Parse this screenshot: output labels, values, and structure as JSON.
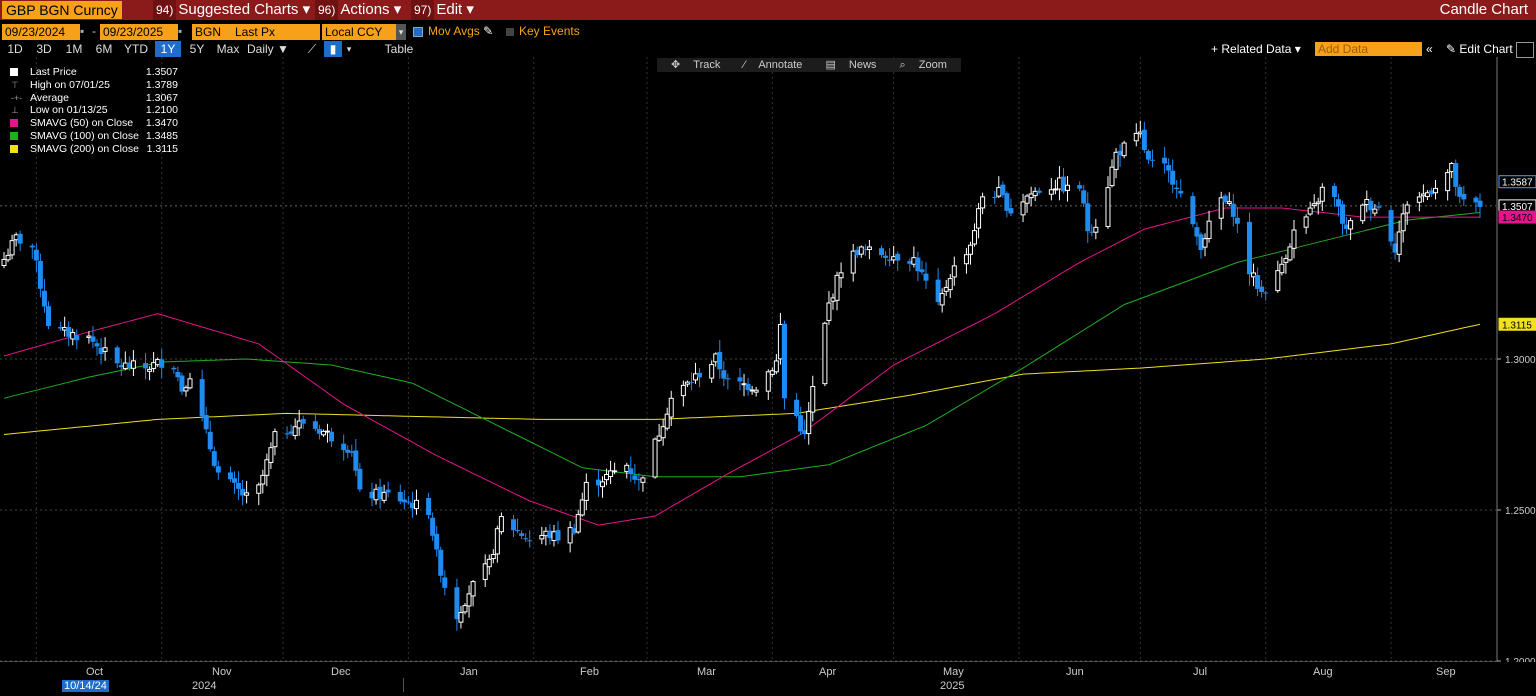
{
  "header": {
    "security": "GBP BGN Curncy",
    "menus": [
      {
        "key": "94)",
        "label": "Suggested Charts"
      },
      {
        "key": "96)",
        "label": "Actions"
      },
      {
        "key": "97)",
        "label": "Edit"
      }
    ],
    "chart_mode": "Candle Chart"
  },
  "controls": {
    "start_date": "09/23/2024",
    "dash": "-",
    "end_date": "09/23/2025",
    "source": "BGN",
    "field": "Last Px",
    "currency": "Local CCY",
    "mov_avgs_label": "Mov Avgs",
    "key_events_label": "Key Events"
  },
  "tabs": [
    "1D",
    "3D",
    "1M",
    "6M",
    "YTD",
    "1Y",
    "5Y",
    "Max"
  ],
  "active_tab": "1Y",
  "period_select": "Daily",
  "table_label": "Table",
  "related_data_label": "Related Data",
  "add_data_placeholder": "Add Data",
  "edit_chart_label": "Edit Chart",
  "toolbar": [
    "Track",
    "Annotate",
    "News",
    "Zoom"
  ],
  "legend": [
    {
      "label": "Last Price",
      "value": "1.3507",
      "color": "#ffffff",
      "kind": "box"
    },
    {
      "label": "High on 07/01/25",
      "value": "1.3789",
      "kind": "high"
    },
    {
      "label": "Average",
      "value": "1.3067",
      "kind": "avg"
    },
    {
      "label": "Low on 01/13/25",
      "value": "1.2100",
      "kind": "low"
    },
    {
      "label": "SMAVG (50)  on Close",
      "value": "1.3470",
      "color": "#e6148c",
      "kind": "box"
    },
    {
      "label": "SMAVG (100)  on Close",
      "value": "1.3485",
      "color": "#1fb01f",
      "kind": "box"
    },
    {
      "label": "SMAVG (200)  on Close",
      "value": "1.3115",
      "color": "#f0e020",
      "kind": "box"
    }
  ],
  "time_axis": {
    "months": [
      "Oct",
      "Nov",
      "Dec",
      "Jan",
      "Feb",
      "Mar",
      "Apr",
      "May",
      "Jun",
      "Jul",
      "Aug",
      "Sep"
    ],
    "years": [
      "2024",
      "2025"
    ],
    "cursor_date": "10/14/24"
  },
  "price_axis": {
    "ticks": [
      "1.3000",
      "1.2500",
      "1.2000"
    ],
    "labels": [
      {
        "text": "1.3587",
        "bg": "#000000",
        "fg": "#ffffff",
        "border": "#4aa3ff"
      },
      {
        "text": "1.3507",
        "bg": "#000000",
        "fg": "#ffffff",
        "border": "#ffffff"
      },
      {
        "text": "1.3470",
        "bg": "#e6148c",
        "fg": "#000000",
        "border": "#e6148c"
      },
      {
        "text": "1.3115",
        "bg": "#f0e020",
        "fg": "#000000",
        "border": "#f0e020"
      }
    ]
  },
  "colors": {
    "title_bar": "#8b1a1a",
    "accent": "#f7a11a",
    "up_candle": "#ffffff",
    "down_candle": "#1f8af0",
    "sma50": "#e6148c",
    "sma100": "#1fb01f",
    "sma200": "#f0e020"
  },
  "chart_data": {
    "type": "candlestick",
    "title": "",
    "ylim": [
      1.195,
      1.4
    ],
    "yticks": [
      1.3,
      1.25,
      1.2
    ],
    "x_range": [
      "09/23/2024",
      "09/23/2025"
    ],
    "anchors": [
      [
        "2024-09-23",
        1.333
      ],
      [
        "2024-09-26",
        1.34
      ],
      [
        "2024-09-30",
        1.337
      ],
      [
        "2024-10-04",
        1.312
      ],
      [
        "2024-10-07",
        1.309
      ],
      [
        "2024-10-14",
        1.307
      ],
      [
        "2024-10-21",
        1.298
      ],
      [
        "2024-10-28",
        1.297
      ],
      [
        "2024-11-01",
        1.299
      ],
      [
        "2024-11-04",
        1.298
      ],
      [
        "2024-11-06",
        1.29
      ],
      [
        "2024-11-08",
        1.295
      ],
      [
        "2024-11-12",
        1.275
      ],
      [
        "2024-11-15",
        1.262
      ],
      [
        "2024-11-22",
        1.254
      ],
      [
        "2024-11-25",
        1.257
      ],
      [
        "2024-11-29",
        1.274
      ],
      [
        "2024-12-04",
        1.278
      ],
      [
        "2024-12-06",
        1.279
      ],
      [
        "2024-12-11",
        1.276
      ],
      [
        "2024-12-18",
        1.27
      ],
      [
        "2024-12-20",
        1.255
      ],
      [
        "2024-12-27",
        1.255
      ],
      [
        "2025-01-06",
        1.25
      ],
      [
        "2025-01-08",
        1.235
      ],
      [
        "2025-01-10",
        1.225
      ],
      [
        "2025-01-13",
        1.215
      ],
      [
        "2025-01-16",
        1.223
      ],
      [
        "2025-01-21",
        1.232
      ],
      [
        "2025-01-24",
        1.247
      ],
      [
        "2025-01-31",
        1.24
      ],
      [
        "2025-02-04",
        1.242
      ],
      [
        "2025-02-07",
        1.241
      ],
      [
        "2025-02-11",
        1.244
      ],
      [
        "2025-02-14",
        1.258
      ],
      [
        "2025-02-19",
        1.261
      ],
      [
        "2025-02-24",
        1.265
      ],
      [
        "2025-02-27",
        1.259
      ],
      [
        "2025-03-03",
        1.272
      ],
      [
        "2025-03-07",
        1.287
      ],
      [
        "2025-03-13",
        1.294
      ],
      [
        "2025-03-18",
        1.3
      ],
      [
        "2025-03-21",
        1.292
      ],
      [
        "2025-03-28",
        1.291
      ],
      [
        "2025-04-02",
        1.299
      ],
      [
        "2025-04-03",
        1.311
      ],
      [
        "2025-04-04",
        1.287
      ],
      [
        "2025-04-07",
        1.281
      ],
      [
        "2025-04-09",
        1.274
      ],
      [
        "2025-04-11",
        1.29
      ],
      [
        "2025-04-15",
        1.318
      ],
      [
        "2025-04-18",
        1.33
      ],
      [
        "2025-04-22",
        1.336
      ],
      [
        "2025-04-28",
        1.335
      ],
      [
        "2025-05-06",
        1.333
      ],
      [
        "2025-05-09",
        1.325
      ],
      [
        "2025-05-12",
        1.317
      ],
      [
        "2025-05-15",
        1.328
      ],
      [
        "2025-05-20",
        1.338
      ],
      [
        "2025-05-23",
        1.354
      ],
      [
        "2025-05-27",
        1.355
      ],
      [
        "2025-05-30",
        1.349
      ],
      [
        "2025-06-03",
        1.354
      ],
      [
        "2025-06-06",
        1.356
      ],
      [
        "2025-06-11",
        1.358
      ],
      [
        "2025-06-13",
        1.356
      ],
      [
        "2025-06-16",
        1.357
      ],
      [
        "2025-06-18",
        1.343
      ],
      [
        "2025-06-20",
        1.345
      ],
      [
        "2025-06-23",
        1.358
      ],
      [
        "2025-06-25",
        1.368
      ],
      [
        "2025-07-01",
        1.374
      ],
      [
        "2025-07-03",
        1.365
      ],
      [
        "2025-07-07",
        1.363
      ],
      [
        "2025-07-10",
        1.358
      ],
      [
        "2025-07-14",
        1.343
      ],
      [
        "2025-07-16",
        1.338
      ],
      [
        "2025-07-21",
        1.353
      ],
      [
        "2025-07-24",
        1.349
      ],
      [
        "2025-07-28",
        1.329
      ],
      [
        "2025-07-31",
        1.322
      ],
      [
        "2025-08-04",
        1.328
      ],
      [
        "2025-08-08",
        1.342
      ],
      [
        "2025-08-13",
        1.35
      ],
      [
        "2025-08-15",
        1.356
      ],
      [
        "2025-08-18",
        1.353
      ],
      [
        "2025-08-21",
        1.342
      ],
      [
        "2025-08-25",
        1.352
      ],
      [
        "2025-08-29",
        1.35
      ],
      [
        "2025-09-02",
        1.337
      ],
      [
        "2025-09-05",
        1.352
      ],
      [
        "2025-09-10",
        1.355
      ],
      [
        "2025-09-16",
        1.363
      ],
      [
        "2025-09-18",
        1.352
      ],
      [
        "2025-09-23",
        1.3507
      ]
    ],
    "sma_anchors": {
      "sma50": [
        [
          "2024-09-23",
          1.301
        ],
        [
          "2024-10-14",
          1.309
        ],
        [
          "2024-10-31",
          1.315
        ],
        [
          "2024-11-25",
          1.305
        ],
        [
          "2024-12-16",
          1.285
        ],
        [
          "2025-01-08",
          1.268
        ],
        [
          "2025-01-31",
          1.253
        ],
        [
          "2025-02-17",
          1.245
        ],
        [
          "2025-03-03",
          1.248
        ],
        [
          "2025-03-21",
          1.262
        ],
        [
          "2025-04-08",
          1.275
        ],
        [
          "2025-05-01",
          1.298
        ],
        [
          "2025-05-26",
          1.315
        ],
        [
          "2025-06-16",
          1.332
        ],
        [
          "2025-07-02",
          1.343
        ],
        [
          "2025-07-22",
          1.35
        ],
        [
          "2025-08-05",
          1.35
        ],
        [
          "2025-08-25",
          1.347
        ],
        [
          "2025-09-23",
          1.347
        ]
      ],
      "sma100": [
        [
          "2024-09-23",
          1.287
        ],
        [
          "2024-10-14",
          1.294
        ],
        [
          "2024-11-01",
          1.299
        ],
        [
          "2024-11-22",
          1.3
        ],
        [
          "2024-12-13",
          1.298
        ],
        [
          "2025-01-02",
          1.292
        ],
        [
          "2025-01-23",
          1.278
        ],
        [
          "2025-02-13",
          1.264
        ],
        [
          "2025-03-03",
          1.261
        ],
        [
          "2025-03-24",
          1.261
        ],
        [
          "2025-04-15",
          1.265
        ],
        [
          "2025-05-09",
          1.278
        ],
        [
          "2025-06-02",
          1.297
        ],
        [
          "2025-06-27",
          1.318
        ],
        [
          "2025-07-25",
          1.332
        ],
        [
          "2025-08-18",
          1.34
        ],
        [
          "2025-09-05",
          1.346
        ],
        [
          "2025-09-23",
          1.3485
        ]
      ],
      "sma200": [
        [
          "2024-09-23",
          1.275
        ],
        [
          "2024-10-31",
          1.28
        ],
        [
          "2024-12-02",
          1.282
        ],
        [
          "2025-01-02",
          1.281
        ],
        [
          "2025-02-03",
          1.28
        ],
        [
          "2025-03-03",
          1.28
        ],
        [
          "2025-04-07",
          1.282
        ],
        [
          "2025-05-05",
          1.288
        ],
        [
          "2025-06-02",
          1.295
        ],
        [
          "2025-07-01",
          1.297
        ],
        [
          "2025-08-01",
          1.3
        ],
        [
          "2025-09-01",
          1.305
        ],
        [
          "2025-09-23",
          1.3115
        ]
      ]
    },
    "summary": {
      "last": 1.3507,
      "high": 1.3789,
      "high_date": "07/01/25",
      "average": 1.3067,
      "low": 1.21,
      "low_date": "01/13/25"
    }
  }
}
